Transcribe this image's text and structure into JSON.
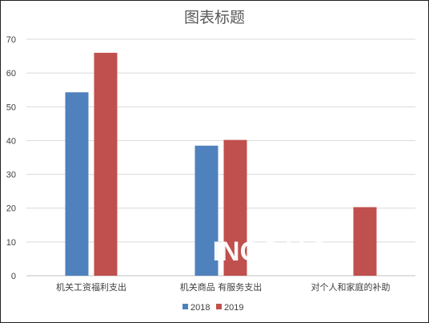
{
  "chart_data": {
    "type": "bar",
    "title": "图表标题",
    "categories": [
      "机关工资福利支出",
      "机关商品 有服务支出",
      "对个人和家庭的补助"
    ],
    "series": [
      {
        "name": "2018",
        "values": [
          54.3,
          38.5,
          0
        ],
        "color": "#4f81bd"
      },
      {
        "name": "2019",
        "values": [
          66,
          40.2,
          20.3
        ],
        "color": "#c0504d"
      }
    ],
    "ylim": [
      0,
      70
    ],
    "yticks": [
      0,
      10,
      20,
      30,
      40,
      50,
      60,
      70
    ],
    "grid": true,
    "legend_position": "bottom",
    "watermark": "INGS         Y.C"
  }
}
